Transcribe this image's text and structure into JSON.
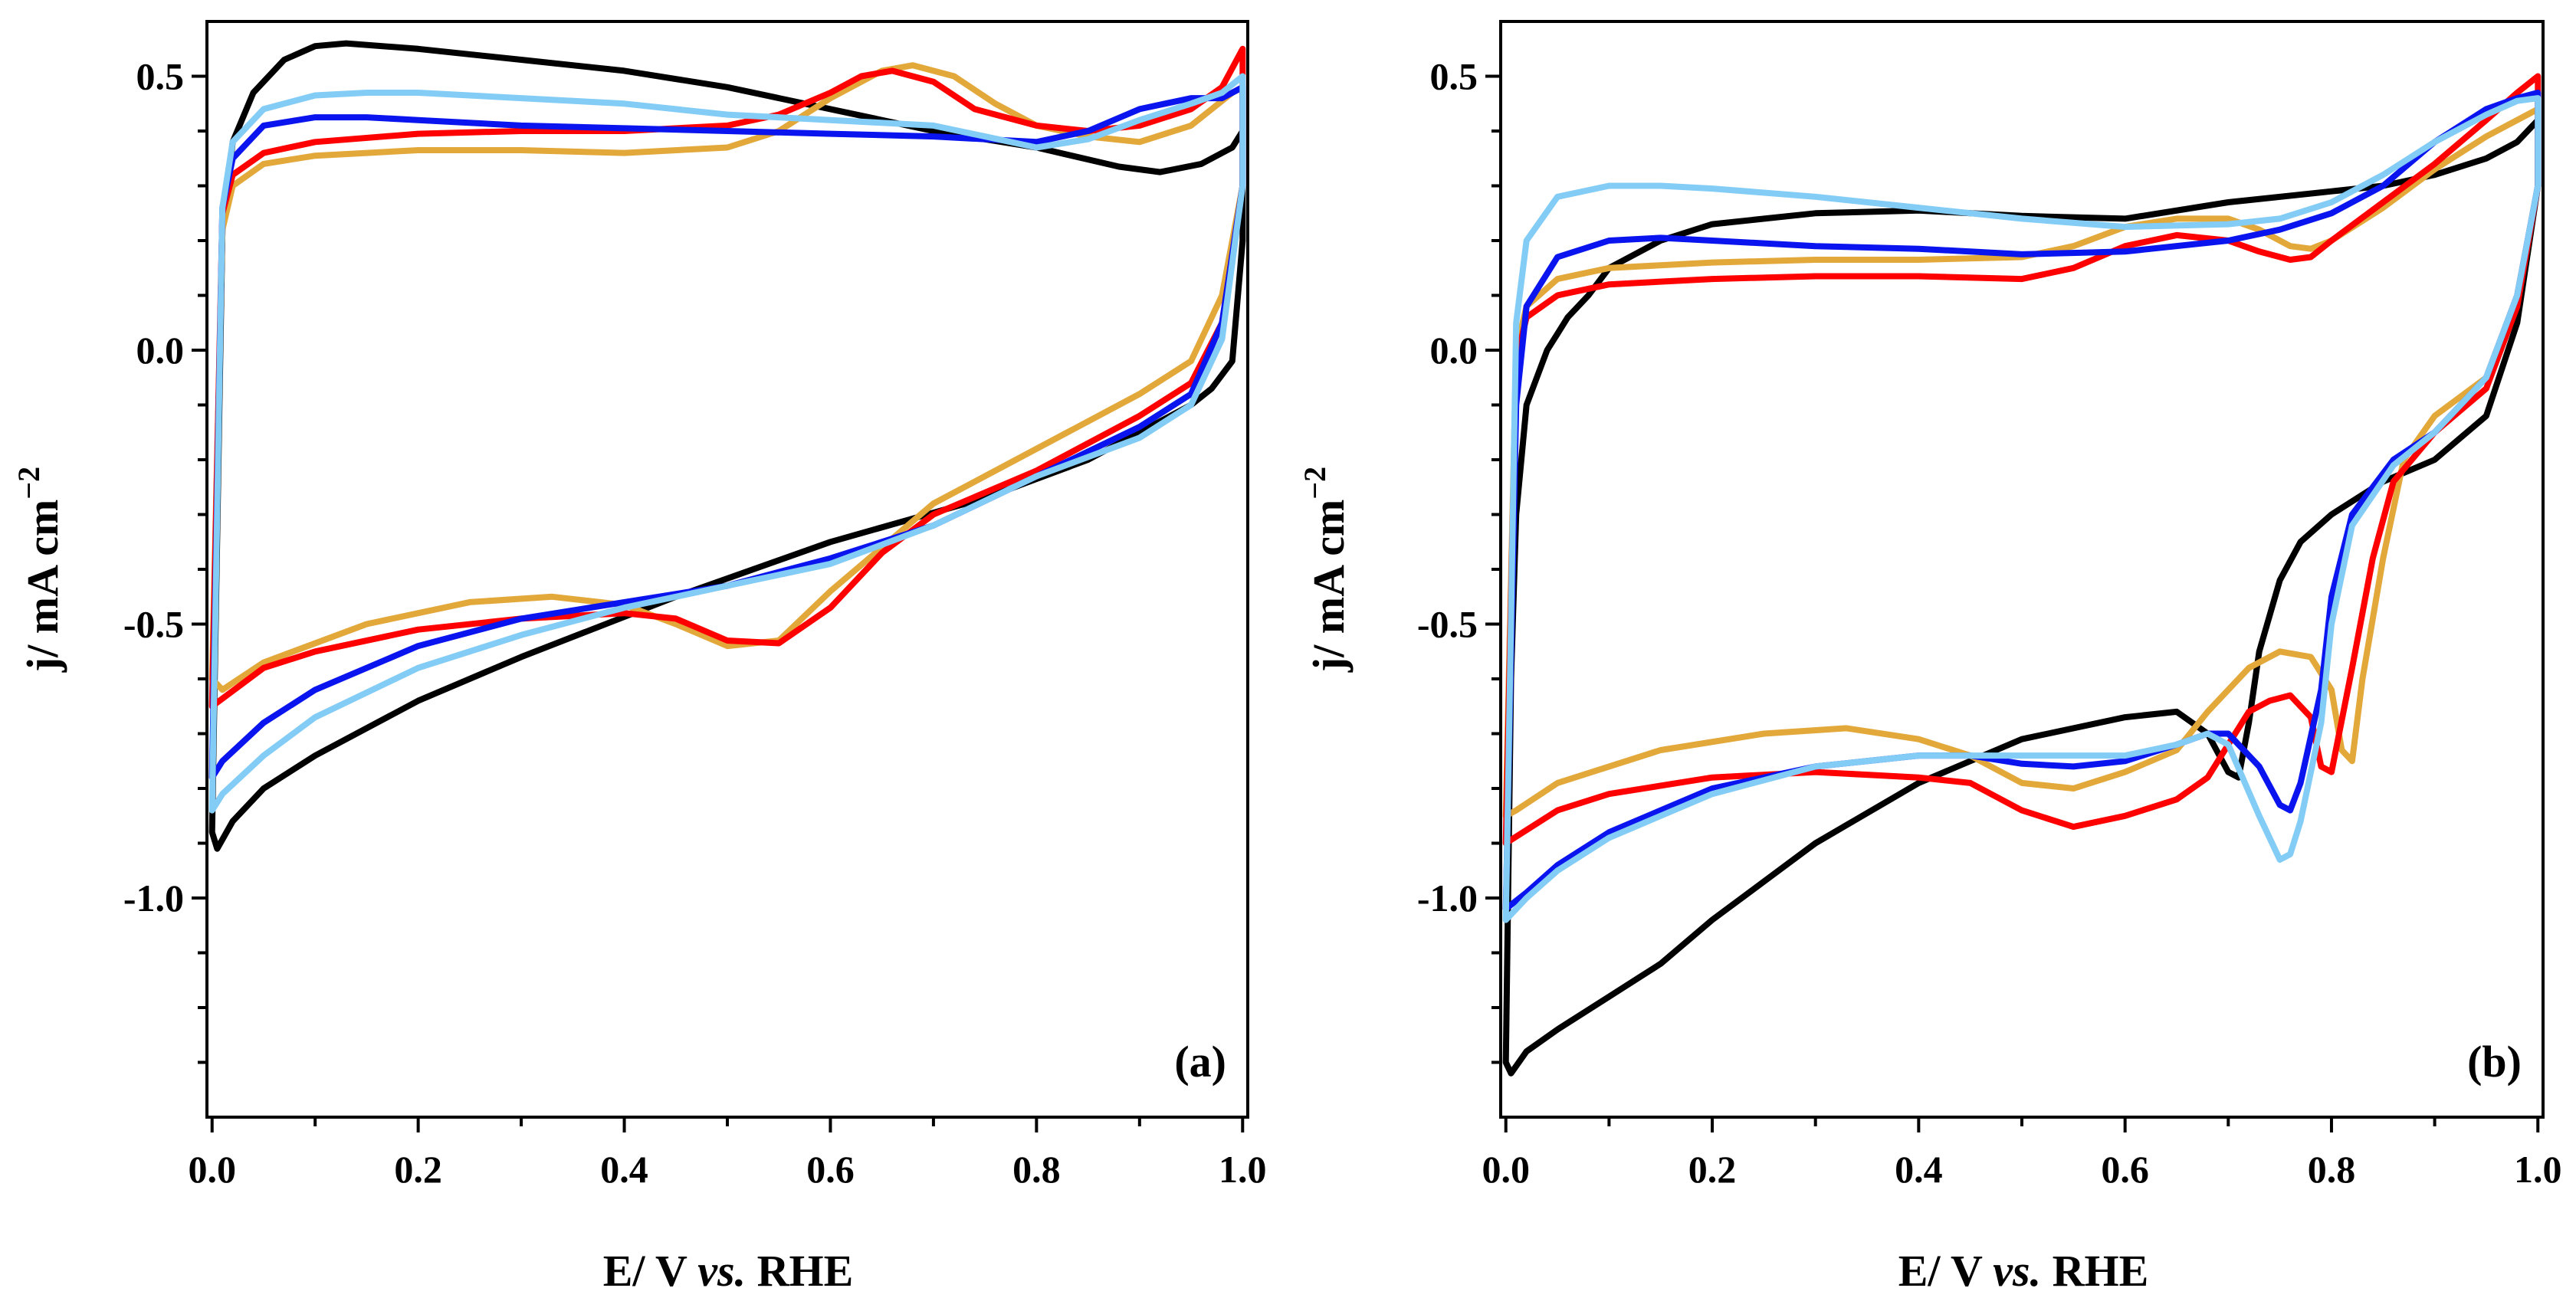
{
  "colors": {
    "black": "#000000",
    "red": "#ff0000",
    "gold": "#e3a83a",
    "blue": "#0a14ee",
    "lightblue": "#82ccf6"
  },
  "chart_data": [
    {
      "type": "line",
      "panel_label": "(a)",
      "xlabel_parts": [
        "E/ V ",
        "vs.",
        " RHE"
      ],
      "ylabel": "j/ mA cm",
      "ylabel_sup": "−2",
      "xlim": [
        -0.005,
        1.005
      ],
      "ylim": [
        -1.4,
        0.6
      ],
      "xticks": [
        0.0,
        0.2,
        0.4,
        0.6,
        0.8,
        1.0
      ],
      "xtick_labels": [
        "0.0",
        "0.2",
        "0.4",
        "0.6",
        "0.8",
        "1.0"
      ],
      "yticks": [
        0.5,
        0.0,
        -0.5,
        -1.0
      ],
      "ytick_labels": [
        "0.5",
        "0.0",
        "-0.5",
        "-1.0"
      ],
      "series": [
        {
          "color": "black",
          "x": [
            0.0,
            0.01,
            0.02,
            0.04,
            0.07,
            0.1,
            0.13,
            0.2,
            0.3,
            0.4,
            0.5,
            0.6,
            0.7,
            0.8,
            0.88,
            0.92,
            0.96,
            0.99,
            1.0,
            1.0,
            0.99,
            0.97,
            0.95,
            0.92,
            0.85,
            0.75,
            0.6,
            0.45,
            0.3,
            0.2,
            0.1,
            0.05,
            0.02,
            0.005,
            0.0
          ],
          "y": [
            -0.88,
            0.22,
            0.38,
            0.47,
            0.53,
            0.555,
            0.56,
            0.55,
            0.53,
            0.51,
            0.48,
            0.44,
            0.4,
            0.37,
            0.335,
            0.325,
            0.34,
            0.37,
            0.4,
            0.2,
            -0.02,
            -0.07,
            -0.1,
            -0.13,
            -0.2,
            -0.27,
            -0.35,
            -0.45,
            -0.56,
            -0.64,
            -0.74,
            -0.8,
            -0.86,
            -0.91,
            -0.88
          ]
        },
        {
          "color": "gold",
          "x": [
            0.0,
            0.01,
            0.02,
            0.05,
            0.1,
            0.2,
            0.3,
            0.4,
            0.5,
            0.55,
            0.6,
            0.65,
            0.68,
            0.72,
            0.76,
            0.8,
            0.85,
            0.9,
            0.95,
            0.99,
            1.0,
            1.0,
            0.98,
            0.95,
            0.9,
            0.8,
            0.7,
            0.6,
            0.55,
            0.5,
            0.45,
            0.4,
            0.33,
            0.25,
            0.15,
            0.05,
            0.01,
            0.0
          ],
          "y": [
            -0.6,
            0.22,
            0.3,
            0.34,
            0.355,
            0.365,
            0.365,
            0.36,
            0.37,
            0.4,
            0.46,
            0.51,
            0.52,
            0.5,
            0.45,
            0.41,
            0.39,
            0.38,
            0.41,
            0.47,
            0.48,
            0.3,
            0.1,
            -0.02,
            -0.08,
            -0.18,
            -0.28,
            -0.44,
            -0.53,
            -0.54,
            -0.5,
            -0.465,
            -0.45,
            -0.46,
            -0.5,
            -0.57,
            -0.62,
            -0.6
          ]
        },
        {
          "color": "red",
          "x": [
            0.0,
            0.01,
            0.02,
            0.05,
            0.1,
            0.2,
            0.3,
            0.4,
            0.5,
            0.55,
            0.6,
            0.63,
            0.66,
            0.7,
            0.74,
            0.8,
            0.85,
            0.9,
            0.95,
            0.98,
            1.0,
            1.0,
            0.98,
            0.95,
            0.9,
            0.8,
            0.7,
            0.65,
            0.6,
            0.55,
            0.5,
            0.45,
            0.4,
            0.3,
            0.2,
            0.1,
            0.05,
            0.0
          ],
          "y": [
            -0.65,
            0.25,
            0.32,
            0.36,
            0.38,
            0.395,
            0.4,
            0.4,
            0.41,
            0.43,
            0.47,
            0.5,
            0.51,
            0.49,
            0.44,
            0.41,
            0.4,
            0.41,
            0.44,
            0.48,
            0.55,
            0.3,
            0.05,
            -0.06,
            -0.12,
            -0.22,
            -0.3,
            -0.37,
            -0.47,
            -0.535,
            -0.53,
            -0.49,
            -0.48,
            -0.49,
            -0.51,
            -0.55,
            -0.58,
            -0.65
          ]
        },
        {
          "color": "blue",
          "x": [
            0.0,
            0.01,
            0.02,
            0.05,
            0.1,
            0.15,
            0.2,
            0.3,
            0.4,
            0.5,
            0.6,
            0.7,
            0.8,
            0.85,
            0.9,
            0.95,
            0.98,
            1.0,
            1.0,
            0.98,
            0.95,
            0.9,
            0.8,
            0.7,
            0.6,
            0.5,
            0.4,
            0.3,
            0.2,
            0.1,
            0.05,
            0.01,
            0.0
          ],
          "y": [
            -0.78,
            0.26,
            0.35,
            0.41,
            0.425,
            0.425,
            0.42,
            0.41,
            0.405,
            0.4,
            0.395,
            0.39,
            0.38,
            0.4,
            0.44,
            0.46,
            0.46,
            0.48,
            0.3,
            0.05,
            -0.08,
            -0.14,
            -0.23,
            -0.32,
            -0.38,
            -0.43,
            -0.46,
            -0.49,
            -0.54,
            -0.62,
            -0.68,
            -0.75,
            -0.78
          ]
        },
        {
          "color": "lightblue",
          "x": [
            0.0,
            0.01,
            0.02,
            0.05,
            0.1,
            0.15,
            0.2,
            0.3,
            0.4,
            0.5,
            0.6,
            0.7,
            0.75,
            0.8,
            0.85,
            0.9,
            0.95,
            0.98,
            1.0,
            1.0,
            0.98,
            0.95,
            0.9,
            0.8,
            0.7,
            0.6,
            0.5,
            0.4,
            0.3,
            0.2,
            0.1,
            0.05,
            0.01,
            0.0
          ],
          "y": [
            -0.84,
            0.26,
            0.38,
            0.44,
            0.465,
            0.47,
            0.47,
            0.46,
            0.45,
            0.43,
            0.42,
            0.41,
            0.39,
            0.37,
            0.385,
            0.42,
            0.45,
            0.47,
            0.5,
            0.3,
            0.02,
            -0.1,
            -0.16,
            -0.23,
            -0.32,
            -0.39,
            -0.43,
            -0.47,
            -0.52,
            -0.58,
            -0.67,
            -0.74,
            -0.81,
            -0.84
          ]
        }
      ]
    },
    {
      "type": "line",
      "panel_label": "(b)",
      "xlabel_parts": [
        "E/ V ",
        "vs.",
        " RHE"
      ],
      "ylabel": "j/ mA cm",
      "ylabel_sup": "−2",
      "xlim": [
        -0.005,
        1.005
      ],
      "ylim": [
        -1.4,
        0.6
      ],
      "xticks": [
        0.0,
        0.2,
        0.4,
        0.6,
        0.8,
        1.0
      ],
      "xtick_labels": [
        "0.0",
        "0.2",
        "0.4",
        "0.6",
        "0.8",
        "1.0"
      ],
      "yticks": [
        0.5,
        0.0,
        -0.5,
        -1.0
      ],
      "ytick_labels": [
        "0.5",
        "0.0",
        "-0.5",
        "-1.0"
      ],
      "series": [
        {
          "color": "black",
          "x": [
            0.0,
            0.005,
            0.01,
            0.02,
            0.04,
            0.05,
            0.06,
            0.08,
            0.1,
            0.15,
            0.2,
            0.3,
            0.4,
            0.5,
            0.6,
            0.7,
            0.8,
            0.85,
            0.9,
            0.95,
            0.98,
            1.0,
            1.0,
            0.98,
            0.95,
            0.9,
            0.85,
            0.8,
            0.77,
            0.75,
            0.73,
            0.72,
            0.71,
            0.7,
            0.68,
            0.65,
            0.6,
            0.5,
            0.4,
            0.3,
            0.2,
            0.15,
            0.1,
            0.05,
            0.02,
            0.005,
            0.0
          ],
          "y": [
            -1.3,
            -0.6,
            -0.3,
            -0.1,
            0.0,
            0.03,
            0.06,
            0.1,
            0.15,
            0.2,
            0.23,
            0.25,
            0.255,
            0.245,
            0.24,
            0.27,
            0.29,
            0.3,
            0.32,
            0.35,
            0.38,
            0.42,
            0.3,
            0.05,
            -0.12,
            -0.2,
            -0.24,
            -0.3,
            -0.35,
            -0.42,
            -0.55,
            -0.68,
            -0.78,
            -0.77,
            -0.7,
            -0.66,
            -0.67,
            -0.71,
            -0.79,
            -0.9,
            -1.04,
            -1.12,
            -1.18,
            -1.24,
            -1.28,
            -1.32,
            -1.3
          ]
        },
        {
          "color": "gold",
          "x": [
            0.0,
            0.01,
            0.02,
            0.05,
            0.1,
            0.2,
            0.3,
            0.4,
            0.5,
            0.55,
            0.6,
            0.65,
            0.7,
            0.73,
            0.76,
            0.78,
            0.8,
            0.85,
            0.9,
            0.95,
            0.98,
            1.0,
            1.0,
            0.98,
            0.95,
            0.9,
            0.87,
            0.85,
            0.83,
            0.82,
            0.81,
            0.8,
            0.78,
            0.75,
            0.72,
            0.68,
            0.65,
            0.6,
            0.55,
            0.5,
            0.45,
            0.4,
            0.33,
            0.25,
            0.15,
            0.05,
            0.01,
            0.0
          ],
          "y": [
            -0.85,
            0.0,
            0.08,
            0.13,
            0.15,
            0.16,
            0.165,
            0.165,
            0.17,
            0.19,
            0.225,
            0.24,
            0.24,
            0.22,
            0.19,
            0.185,
            0.2,
            0.26,
            0.33,
            0.39,
            0.42,
            0.44,
            0.3,
            0.1,
            -0.05,
            -0.12,
            -0.2,
            -0.38,
            -0.6,
            -0.75,
            -0.73,
            -0.62,
            -0.56,
            -0.55,
            -0.58,
            -0.66,
            -0.73,
            -0.77,
            -0.8,
            -0.79,
            -0.74,
            -0.71,
            -0.69,
            -0.7,
            -0.73,
            -0.79,
            -0.84,
            -0.85
          ]
        },
        {
          "color": "red",
          "x": [
            0.0,
            0.01,
            0.02,
            0.05,
            0.1,
            0.2,
            0.3,
            0.4,
            0.5,
            0.55,
            0.6,
            0.65,
            0.7,
            0.73,
            0.76,
            0.78,
            0.8,
            0.85,
            0.9,
            0.95,
            0.98,
            1.0,
            1.0,
            0.98,
            0.95,
            0.9,
            0.86,
            0.84,
            0.82,
            0.8,
            0.79,
            0.78,
            0.76,
            0.74,
            0.72,
            0.7,
            0.68,
            0.65,
            0.6,
            0.55,
            0.5,
            0.45,
            0.4,
            0.3,
            0.2,
            0.1,
            0.05,
            0.0
          ],
          "y": [
            -0.9,
            -0.02,
            0.06,
            0.1,
            0.12,
            0.13,
            0.135,
            0.135,
            0.13,
            0.15,
            0.19,
            0.21,
            0.2,
            0.18,
            0.165,
            0.17,
            0.2,
            0.27,
            0.34,
            0.42,
            0.47,
            0.5,
            0.3,
            0.08,
            -0.07,
            -0.15,
            -0.24,
            -0.38,
            -0.58,
            -0.77,
            -0.76,
            -0.67,
            -0.63,
            -0.64,
            -0.66,
            -0.72,
            -0.78,
            -0.82,
            -0.85,
            -0.87,
            -0.84,
            -0.79,
            -0.78,
            -0.77,
            -0.78,
            -0.81,
            -0.84,
            -0.9
          ]
        },
        {
          "color": "blue",
          "x": [
            0.0,
            0.01,
            0.02,
            0.05,
            0.1,
            0.15,
            0.2,
            0.3,
            0.4,
            0.5,
            0.6,
            0.7,
            0.75,
            0.8,
            0.85,
            0.9,
            0.95,
            0.98,
            1.0,
            1.0,
            0.98,
            0.95,
            0.9,
            0.86,
            0.82,
            0.8,
            0.79,
            0.77,
            0.76,
            0.75,
            0.73,
            0.7,
            0.68,
            0.65,
            0.6,
            0.55,
            0.5,
            0.45,
            0.4,
            0.3,
            0.2,
            0.1,
            0.05,
            0.02,
            0.0
          ],
          "y": [
            -1.02,
            -0.1,
            0.08,
            0.17,
            0.2,
            0.205,
            0.2,
            0.19,
            0.185,
            0.175,
            0.18,
            0.2,
            0.22,
            0.25,
            0.3,
            0.38,
            0.44,
            0.46,
            0.47,
            0.3,
            0.1,
            -0.05,
            -0.15,
            -0.2,
            -0.3,
            -0.45,
            -0.62,
            -0.79,
            -0.84,
            -0.83,
            -0.76,
            -0.7,
            -0.7,
            -0.72,
            -0.75,
            -0.76,
            -0.755,
            -0.74,
            -0.74,
            -0.76,
            -0.8,
            -0.88,
            -0.94,
            -0.99,
            -1.02
          ]
        },
        {
          "color": "lightblue",
          "x": [
            0.0,
            0.01,
            0.02,
            0.05,
            0.1,
            0.15,
            0.2,
            0.3,
            0.4,
            0.5,
            0.6,
            0.7,
            0.75,
            0.8,
            0.85,
            0.9,
            0.95,
            0.98,
            1.0,
            1.0,
            0.98,
            0.95,
            0.9,
            0.86,
            0.82,
            0.8,
            0.79,
            0.77,
            0.76,
            0.75,
            0.73,
            0.7,
            0.68,
            0.65,
            0.6,
            0.55,
            0.5,
            0.45,
            0.4,
            0.3,
            0.2,
            0.1,
            0.05,
            0.02,
            0.0
          ],
          "y": [
            -1.04,
            0.05,
            0.2,
            0.28,
            0.3,
            0.3,
            0.295,
            0.28,
            0.26,
            0.24,
            0.225,
            0.23,
            0.24,
            0.27,
            0.32,
            0.38,
            0.43,
            0.455,
            0.46,
            0.3,
            0.1,
            -0.05,
            -0.15,
            -0.21,
            -0.32,
            -0.5,
            -0.68,
            -0.86,
            -0.92,
            -0.93,
            -0.85,
            -0.72,
            -0.7,
            -0.72,
            -0.74,
            -0.74,
            -0.74,
            -0.74,
            -0.74,
            -0.76,
            -0.81,
            -0.89,
            -0.95,
            -1.0,
            -1.04
          ]
        }
      ]
    }
  ]
}
